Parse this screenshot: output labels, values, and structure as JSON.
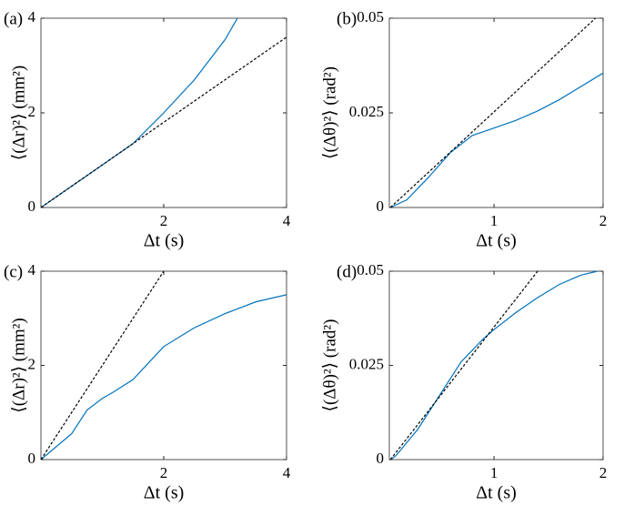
{
  "chart_data": [
    {
      "type": "line",
      "panel_label": "(a)",
      "xlabel": "Δt (s)",
      "ylabel": "⟨(Δr)²⟩ (mm²)",
      "xlim": [
        0,
        4
      ],
      "ylim": [
        0,
        4
      ],
      "xticks": [
        2,
        4
      ],
      "yticks": [
        0,
        2,
        4
      ],
      "series": [
        {
          "color": "#0072bd",
          "linestyle": "solid",
          "x": [
            0,
            0.5,
            1,
            1.5,
            2,
            2.5,
            3,
            3.2
          ],
          "values": [
            0,
            0.45,
            0.9,
            1.35,
            2.0,
            2.7,
            3.55,
            4.0
          ]
        },
        {
          "color": "#000000",
          "linestyle": "dashed",
          "x": [
            0,
            4
          ],
          "values": [
            0,
            3.6
          ]
        }
      ]
    },
    {
      "type": "line",
      "panel_label": "(b)",
      "xlabel": "Δt (s)",
      "ylabel": "⟨(Δθ)²⟩ (rad²)",
      "xlim": [
        0.04,
        2
      ],
      "ylim": [
        0,
        0.05
      ],
      "xticks": [
        1,
        2
      ],
      "yticks": [
        0,
        0.025,
        0.05
      ],
      "series": [
        {
          "color": "#0072bd",
          "linestyle": "solid",
          "x": [
            0.05,
            0.2,
            0.4,
            0.6,
            0.8,
            1.0,
            1.2,
            1.4,
            1.6,
            1.8,
            2.0
          ],
          "values": [
            0,
            0.002,
            0.008,
            0.0145,
            0.019,
            0.021,
            0.023,
            0.0255,
            0.0285,
            0.032,
            0.0355
          ]
        },
        {
          "color": "#000000",
          "linestyle": "dashed",
          "x": [
            0.05,
            1.93
          ],
          "values": [
            0,
            0.05
          ]
        }
      ]
    },
    {
      "type": "line",
      "panel_label": "(c)",
      "xlabel": "Δt (s)",
      "ylabel": "⟨(Δr)²⟩ (mm²)",
      "xlim": [
        0,
        4
      ],
      "ylim": [
        0,
        4
      ],
      "xticks": [
        2,
        4
      ],
      "yticks": [
        0,
        2,
        4
      ],
      "series": [
        {
          "color": "#0072bd",
          "linestyle": "solid",
          "x": [
            0,
            0.5,
            0.75,
            1.0,
            1.2,
            1.5,
            2.0,
            2.5,
            3.0,
            3.5,
            4.0
          ],
          "values": [
            0,
            0.55,
            1.05,
            1.3,
            1.45,
            1.7,
            2.4,
            2.8,
            3.1,
            3.35,
            3.5
          ]
        },
        {
          "color": "#000000",
          "linestyle": "dashed",
          "x": [
            0,
            2
          ],
          "values": [
            0,
            4
          ]
        }
      ]
    },
    {
      "type": "line",
      "panel_label": "(d)",
      "xlabel": "Δt (s)",
      "ylabel": "⟨(Δθ)²⟩ (rad²)",
      "xlim": [
        0.04,
        2
      ],
      "ylim": [
        0,
        0.05
      ],
      "xticks": [
        1,
        2
      ],
      "yticks": [
        0,
        0.025,
        0.05
      ],
      "series": [
        {
          "color": "#0072bd",
          "linestyle": "solid",
          "x": [
            0.05,
            0.1,
            0.3,
            0.5,
            0.7,
            0.9,
            1.0,
            1.2,
            1.4,
            1.6,
            1.8,
            1.95
          ],
          "values": [
            0,
            0.001,
            0.008,
            0.017,
            0.026,
            0.032,
            0.0345,
            0.039,
            0.043,
            0.0465,
            0.049,
            0.05
          ]
        },
        {
          "color": "#000000",
          "linestyle": "dashed",
          "x": [
            0.05,
            1.4
          ],
          "values": [
            0,
            0.05
          ]
        }
      ]
    }
  ]
}
